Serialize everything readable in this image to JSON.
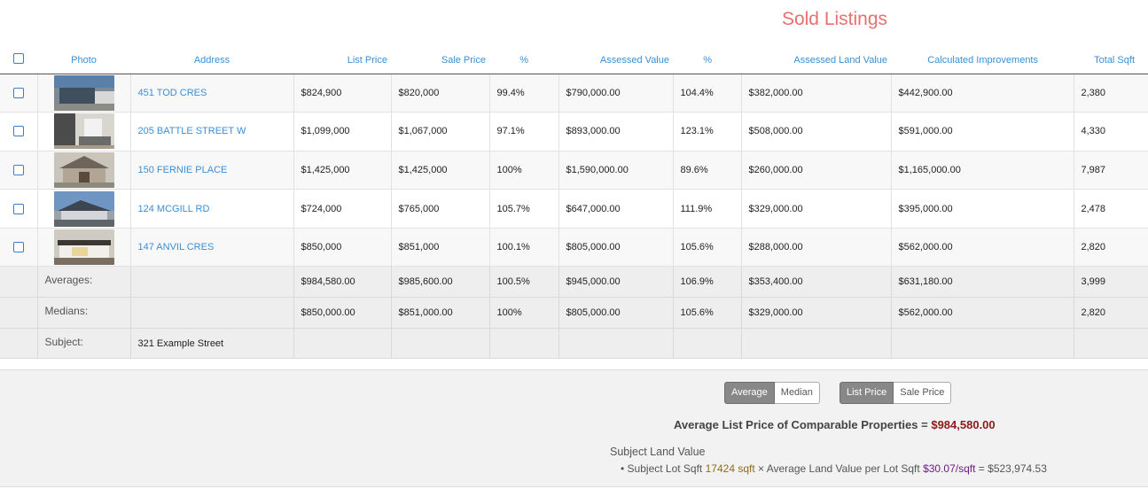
{
  "title": "Sold Listings",
  "columns": {
    "photo": "Photo",
    "address": "Address",
    "list_price": "List Price",
    "sale_price": "Sale Price",
    "pct1": "%",
    "assessed_value": "Assessed Value",
    "pct2": "%",
    "assessed_land_value": "Assessed Land Value",
    "calculated_improvements": "Calculated Improvements",
    "total_sqft": "Total Sqft"
  },
  "rows": [
    {
      "address": "451 TOD CRES",
      "list_price": "$824,900",
      "sale_price": "$820,000",
      "pct1": "99.4%",
      "assessed_value": "$790,000.00",
      "pct2": "104.4%",
      "assessed_land_value": "$382,000.00",
      "calculated_improvements": "$442,900.00",
      "total_sqft": "2,380"
    },
    {
      "address": "205 BATTLE STREET W",
      "list_price": "$1,099,000",
      "sale_price": "$1,067,000",
      "pct1": "97.1%",
      "assessed_value": "$893,000.00",
      "pct2": "123.1%",
      "assessed_land_value": "$508,000.00",
      "calculated_improvements": "$591,000.00",
      "total_sqft": "4,330"
    },
    {
      "address": "150 FERNIE PLACE",
      "list_price": "$1,425,000",
      "sale_price": "$1,425,000",
      "pct1": "100%",
      "assessed_value": "$1,590,000.00",
      "pct2": "89.6%",
      "assessed_land_value": "$260,000.00",
      "calculated_improvements": "$1,165,000.00",
      "total_sqft": "7,987"
    },
    {
      "address": "124 MCGILL RD",
      "list_price": "$724,000",
      "sale_price": "$765,000",
      "pct1": "105.7%",
      "assessed_value": "$647,000.00",
      "pct2": "111.9%",
      "assessed_land_value": "$329,000.00",
      "calculated_improvements": "$395,000.00",
      "total_sqft": "2,478"
    },
    {
      "address": "147 ANVIL CRES",
      "list_price": "$850,000",
      "sale_price": "$851,000",
      "pct1": "100.1%",
      "assessed_value": "$805,000.00",
      "pct2": "105.6%",
      "assessed_land_value": "$288,000.00",
      "calculated_improvements": "$562,000.00",
      "total_sqft": "2,820"
    }
  ],
  "averages": {
    "label": "Averages:",
    "list_price": "$984,580.00",
    "sale_price": "$985,600.00",
    "pct1": "100.5%",
    "assessed_value": "$945,000.00",
    "pct2": "106.9%",
    "assessed_land_value": "$353,400.00",
    "calculated_improvements": "$631,180.00",
    "total_sqft": "3,999"
  },
  "medians": {
    "label": "Medians:",
    "list_price": "$850,000.00",
    "sale_price": "$851,000.00",
    "pct1": "100%",
    "assessed_value": "$805,000.00",
    "pct2": "105.6%",
    "assessed_land_value": "$329,000.00",
    "calculated_improvements": "$562,000.00",
    "total_sqft": "2,820"
  },
  "subject": {
    "label": "Subject:",
    "address": "321 Example Street"
  },
  "stat_toggle": {
    "average": "Average",
    "median": "Median",
    "selected": "Average"
  },
  "price_toggle": {
    "list_price": "List Price",
    "sale_price": "Sale Price",
    "selected": "List Price"
  },
  "summary": {
    "prefix": "Average List Price of Comparable Properties =",
    "amount": "$984,580.00"
  },
  "land": {
    "title": "Subject Land Value",
    "bullet": "•",
    "lot_label": "Subject Lot Sqft",
    "lot_value": "17424 sqft",
    "times": "×",
    "avg_label": "Average Land Value per Lot Sqft",
    "avg_value": "$30.07/sqft",
    "equals": "=",
    "result": "$523,974.53"
  },
  "colors": {
    "title": "#e8706f",
    "link": "#3b8fd6",
    "amount": "#8b1a1a",
    "lot": "#8a6d1a",
    "rate": "#6a1b7a"
  },
  "icons": {
    "checkbox": "checkbox-icon",
    "photo": "house-photo"
  }
}
